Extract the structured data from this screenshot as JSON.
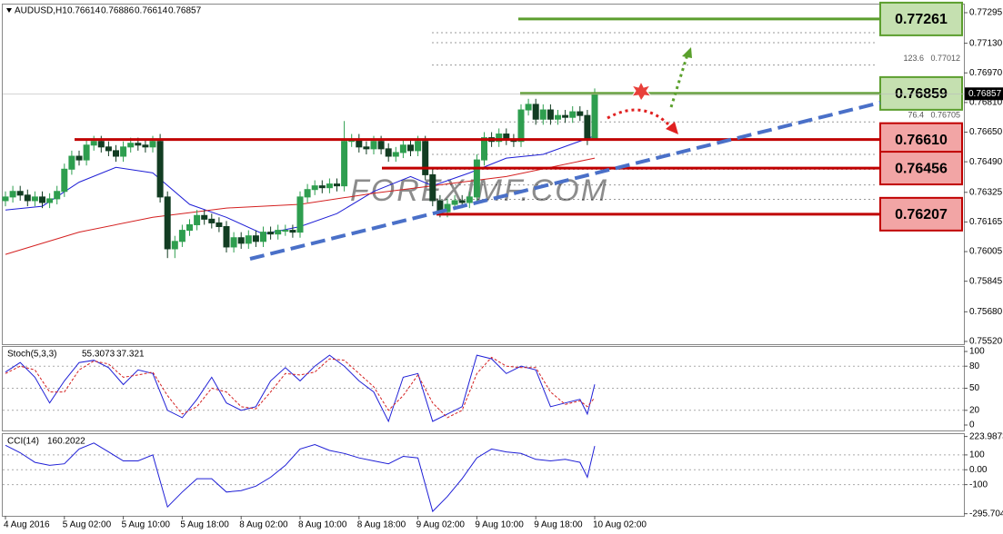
{
  "chart_data": [
    {
      "type": "candlestick",
      "symbol": "AUDUSD,H1",
      "watermark": "FOREXIMF.COM",
      "up_color": "#2e9e4f",
      "down_color": "#123d22",
      "open": [
        0.7628,
        0.763,
        0.7633,
        0.7631,
        0.7628,
        0.763,
        0.7627,
        0.7629,
        0.7633,
        0.7645,
        0.7652,
        0.765,
        0.7658,
        0.766,
        0.7657,
        0.7655,
        0.7652,
        0.7657,
        0.7659,
        0.7658,
        0.7657,
        0.766,
        0.763,
        0.7602,
        0.7606,
        0.7612,
        0.7615,
        0.762,
        0.7618,
        0.7616,
        0.7614,
        0.7603,
        0.7608,
        0.7605,
        0.7609,
        0.7606,
        0.7611,
        0.761,
        0.7612,
        0.7612,
        0.7611,
        0.763,
        0.7634,
        0.7636,
        0.7635,
        0.7637,
        0.7636,
        0.766,
        0.7661,
        0.7657,
        0.7656,
        0.766,
        0.7656,
        0.7652,
        0.7654,
        0.7658,
        0.7655,
        0.766,
        0.7642,
        0.7628,
        0.7622,
        0.7626,
        0.7628,
        0.7627,
        0.763,
        0.765,
        0.7662,
        0.766,
        0.7664,
        0.7661,
        0.766,
        0.7677,
        0.768,
        0.7672,
        0.7677,
        0.7672,
        0.7674,
        0.7673,
        0.7676,
        0.7674,
        0.76614
      ],
      "high": [
        0.7633,
        0.7636,
        0.7636,
        0.7634,
        0.7633,
        0.7633,
        0.7632,
        0.7636,
        0.7648,
        0.7655,
        0.7655,
        0.7661,
        0.7663,
        0.7663,
        0.766,
        0.7658,
        0.766,
        0.7662,
        0.7662,
        0.7661,
        0.7663,
        0.7664,
        0.7633,
        0.7609,
        0.7615,
        0.7618,
        0.7623,
        0.7623,
        0.7621,
        0.7619,
        0.7617,
        0.7611,
        0.7611,
        0.7612,
        0.7612,
        0.7614,
        0.7614,
        0.7615,
        0.7615,
        0.7615,
        0.7633,
        0.7637,
        0.7639,
        0.7639,
        0.764,
        0.764,
        0.7671,
        0.7664,
        0.7664,
        0.766,
        0.7663,
        0.7663,
        0.7659,
        0.7657,
        0.7661,
        0.7661,
        0.7663,
        0.7663,
        0.7645,
        0.7631,
        0.7629,
        0.7631,
        0.7631,
        0.7633,
        0.7653,
        0.7665,
        0.7665,
        0.7667,
        0.7667,
        0.7664,
        0.768,
        0.7683,
        0.7683,
        0.768,
        0.768,
        0.7677,
        0.7677,
        0.7679,
        0.7679,
        0.7677,
        0.76886
      ],
      "low": [
        0.7625,
        0.7627,
        0.7628,
        0.7625,
        0.7625,
        0.7624,
        0.7624,
        0.7626,
        0.763,
        0.7642,
        0.7647,
        0.7647,
        0.7655,
        0.7654,
        0.7652,
        0.7649,
        0.7649,
        0.7654,
        0.7655,
        0.7654,
        0.7654,
        0.7627,
        0.7597,
        0.7597,
        0.7603,
        0.7609,
        0.7612,
        0.7615,
        0.7613,
        0.7611,
        0.76,
        0.76,
        0.7602,
        0.7602,
        0.7603,
        0.7603,
        0.7607,
        0.7607,
        0.7609,
        0.7608,
        0.7608,
        0.7627,
        0.7631,
        0.7632,
        0.7632,
        0.7633,
        0.7633,
        0.7657,
        0.7654,
        0.7653,
        0.7653,
        0.7653,
        0.7649,
        0.7649,
        0.7651,
        0.7652,
        0.7652,
        0.7639,
        0.7625,
        0.7619,
        0.7619,
        0.7623,
        0.7624,
        0.7624,
        0.7627,
        0.7647,
        0.7657,
        0.7657,
        0.7658,
        0.7657,
        0.7657,
        0.7674,
        0.7669,
        0.7669,
        0.7669,
        0.7669,
        0.767,
        0.767,
        0.7671,
        0.7658,
        0.76614
      ],
      "close": [
        0.763,
        0.7633,
        0.7631,
        0.7628,
        0.763,
        0.7627,
        0.7629,
        0.7633,
        0.7645,
        0.7652,
        0.765,
        0.7658,
        0.766,
        0.7657,
        0.7655,
        0.7652,
        0.7657,
        0.7659,
        0.7658,
        0.7657,
        0.766,
        0.763,
        0.7602,
        0.7606,
        0.7612,
        0.7615,
        0.762,
        0.7618,
        0.7616,
        0.7614,
        0.7603,
        0.7608,
        0.7605,
        0.7609,
        0.7606,
        0.7611,
        0.761,
        0.7612,
        0.7612,
        0.7611,
        0.763,
        0.7634,
        0.7636,
        0.7635,
        0.7637,
        0.7636,
        0.766,
        0.7661,
        0.7657,
        0.7656,
        0.766,
        0.7656,
        0.7652,
        0.7654,
        0.7658,
        0.7655,
        0.766,
        0.7642,
        0.7628,
        0.7622,
        0.7626,
        0.7628,
        0.7627,
        0.763,
        0.765,
        0.7662,
        0.766,
        0.7664,
        0.7661,
        0.766,
        0.7677,
        0.768,
        0.7672,
        0.7677,
        0.7672,
        0.7674,
        0.7673,
        0.7676,
        0.7674,
        0.76614,
        0.76857
      ],
      "overlays": [
        {
          "color": "#1f1fd6",
          "x": [
            0,
            5,
            10,
            15,
            20,
            25,
            30,
            35,
            40,
            45,
            50,
            55,
            58,
            63,
            68,
            73,
            80
          ],
          "values": [
            0.7623,
            0.7625,
            0.7638,
            0.7646,
            0.7643,
            0.7626,
            0.7619,
            0.761,
            0.7614,
            0.7621,
            0.7633,
            0.7641,
            0.7636,
            0.7643,
            0.7651,
            0.7653,
            0.7663
          ]
        },
        {
          "color": "#d42020",
          "x": [
            0,
            10,
            20,
            30,
            40,
            50,
            58,
            68,
            80
          ],
          "values": [
            0.7599,
            0.7611,
            0.7619,
            0.7624,
            0.7626,
            0.7632,
            0.7636,
            0.7641,
            0.7651
          ]
        }
      ],
      "levels": [
        {
          "value": 0.77261,
          "color": "#5c9e2e",
          "fill": "#c5e0b0"
        },
        {
          "value": 0.76859,
          "color": "#5c9e2e",
          "fill": "#c5e0b0"
        },
        {
          "value": 0.7661,
          "label": "0.76610",
          "color": "#c00000",
          "fill": "#f2a5a5"
        },
        {
          "value": 0.76456,
          "color": "#c00000",
          "fill": "#f2a5a5"
        },
        {
          "value": 0.76207,
          "color": "#c00000",
          "fill": "#f2a5a5"
        }
      ],
      "fib_lines": [
        {
          "price": 0.77187
        },
        {
          "price": 0.77133
        },
        {
          "price": 0.77012,
          "ratio": "123.6"
        },
        {
          "price": 0.76705,
          "ratio": "76.4"
        },
        {
          "price": 0.7653
        },
        {
          "price": 0.76449
        },
        {
          "price": 0.76365
        },
        {
          "price": 0.76287
        }
      ],
      "ylim": [
        0.75505,
        0.77339
      ],
      "yticks": [
        0.77295,
        {
          "value": 0.7713,
          "label": "0.77130"
        },
        {
          "value": 0.7697,
          "label": "0.76970"
        },
        {
          "value": 0.7681,
          "label": "0.76810"
        },
        {
          "value": 0.7665,
          "label": "0.76650"
        },
        {
          "value": 0.7649,
          "label": "0.76490"
        },
        0.76325,
        0.76165,
        0.76005,
        0.75845,
        {
          "value": 0.7568,
          "label": "0.75680"
        },
        {
          "value": 0.7552,
          "label": "0.75520"
        }
      ],
      "xticks": [
        {
          "value": 0,
          "label": "4 Aug 2016"
        },
        {
          "value": 8,
          "label": "5 Aug 02:00"
        },
        {
          "value": 16,
          "label": "5 Aug 10:00"
        },
        {
          "value": 24,
          "label": "5 Aug 18:00"
        },
        {
          "value": 32,
          "label": "8 Aug 02:00"
        },
        {
          "value": 40,
          "label": "8 Aug 10:00"
        },
        {
          "value": 48,
          "label": "8 Aug 18:00"
        },
        {
          "value": 56,
          "label": "9 Aug 02:00"
        },
        {
          "value": 64,
          "label": "9 Aug 10:00"
        },
        {
          "value": 72,
          "label": "9 Aug 18:00"
        },
        {
          "value": 80,
          "label": "10 Aug 02:00"
        }
      ]
    },
    {
      "type": "line",
      "title": "Stoch(5,3,3)",
      "x": [
        0,
        2,
        4,
        6,
        8,
        10,
        12,
        14,
        16,
        18,
        20,
        22,
        24,
        26,
        28,
        30,
        32,
        34,
        36,
        38,
        40,
        42,
        44,
        46,
        48,
        50,
        52,
        54,
        56,
        58,
        60,
        62,
        64,
        66,
        68,
        70,
        72,
        74,
        76,
        78,
        79,
        80
      ],
      "series": [
        {
          "color": "#1f1fd6",
          "values": [
            72,
            85,
            65,
            30,
            60,
            85,
            88,
            78,
            55,
            75,
            70,
            20,
            10,
            35,
            65,
            30,
            20,
            25,
            60,
            78,
            60,
            80,
            95,
            80,
            60,
            45,
            5,
            65,
            70,
            5,
            15,
            25,
            95,
            90,
            70,
            80,
            75,
            25,
            30,
            35,
            15,
            55.3073
          ]
        },
        {
          "color": "#d42020",
          "dashed": true,
          "values": [
            70,
            80,
            75,
            45,
            45,
            75,
            87,
            83,
            65,
            68,
            72,
            40,
            15,
            25,
            50,
            45,
            25,
            22,
            45,
            70,
            68,
            72,
            90,
            88,
            70,
            52,
            20,
            40,
            68,
            30,
            10,
            20,
            70,
            92,
            80,
            78,
            78,
            45,
            28,
            33,
            25,
            37.321
          ]
        }
      ],
      "ylim": [
        -7.4,
        106.2
      ],
      "yticks": [
        100,
        80,
        50,
        20,
        0
      ],
      "grid": true
    },
    {
      "type": "line",
      "title": "CCI(14)",
      "x": [
        0,
        2,
        4,
        6,
        8,
        10,
        12,
        14,
        16,
        18,
        20,
        22,
        24,
        26,
        28,
        30,
        32,
        34,
        36,
        38,
        40,
        42,
        44,
        46,
        48,
        50,
        52,
        54,
        56,
        58,
        60,
        62,
        64,
        66,
        68,
        70,
        72,
        74,
        76,
        78,
        79,
        80
      ],
      "series": [
        {
          "color": "#1f1fd6",
          "values": [
            165,
            115,
            50,
            30,
            40,
            140,
            180,
            120,
            60,
            60,
            100,
            -250,
            -150,
            -60,
            -60,
            -150,
            -140,
            -110,
            -50,
            30,
            140,
            170,
            130,
            110,
            80,
            60,
            40,
            90,
            80,
            -280,
            -180,
            -60,
            80,
            140,
            120,
            110,
            70,
            60,
            70,
            50,
            -50,
            160.2022
          ]
        }
      ],
      "ylim": [
        -310,
        240
      ],
      "yticks": [
        223.9873,
        100,
        {
          "value": 0,
          "label": "0.00"
        },
        -100,
        -295.7041
      ],
      "grid": true
    }
  ]
}
